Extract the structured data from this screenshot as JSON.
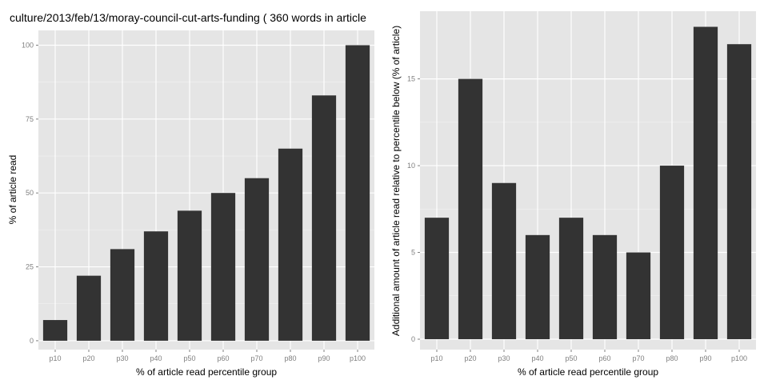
{
  "page_title": "culture/2013/feb/13/moray-council-cut-arts-funding ( 360 words in article",
  "chart_data": [
    {
      "type": "bar",
      "title": "culture/2013/feb/13/moray-council-cut-arts-funding ( 360 words in article",
      "categories": [
        "p10",
        "p20",
        "p30",
        "p40",
        "p50",
        "p60",
        "p70",
        "p80",
        "p90",
        "p100"
      ],
      "values": [
        7,
        22,
        31,
        37,
        44,
        50,
        55,
        65,
        83,
        100
      ],
      "xlabel": "% of article read percentile group",
      "ylabel": "% of article read",
      "ylim": [
        -3,
        105
      ],
      "yticks": [
        0,
        25,
        50,
        75,
        100
      ],
      "grid": true,
      "bar_color": "#333333",
      "panel_color": "#e5e5e5"
    },
    {
      "type": "bar",
      "title": "",
      "categories": [
        "p10",
        "p20",
        "p30",
        "p40",
        "p50",
        "p60",
        "p70",
        "p80",
        "p90",
        "p100"
      ],
      "values": [
        7,
        15,
        9,
        6,
        7,
        6,
        5,
        10,
        18,
        17
      ],
      "xlabel": "% of article read percentile group",
      "ylabel": "Additional amount of article read relative to percentile below (% of article)",
      "ylim": [
        -0.6,
        18.9
      ],
      "yticks": [
        0,
        5,
        10,
        15
      ],
      "grid": true,
      "bar_color": "#333333",
      "panel_color": "#e5e5e5"
    }
  ]
}
